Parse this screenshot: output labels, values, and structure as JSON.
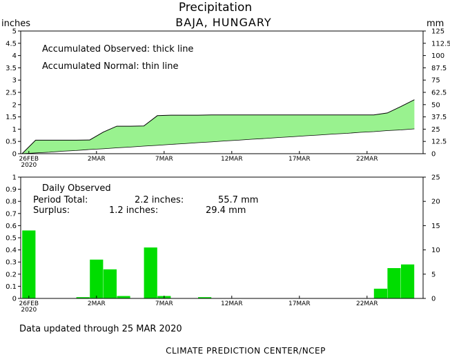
{
  "title": "Precipitation",
  "subtitle": "BAJA, HUNGARY",
  "left_unit": "inches",
  "right_unit": "mm",
  "top_panel": {
    "annotation_line1": "Accumulated Observed: thick line",
    "annotation_line2": "Accumulated Normal: thin line",
    "y_left_ticks": [
      "0",
      "0.5",
      "1",
      "1.5",
      "2",
      "2.5",
      "3",
      "3.5",
      "4",
      "4.5",
      "5"
    ],
    "y_right_ticks": [
      "0",
      "12.5",
      "25",
      "37.5",
      "50",
      "62.5",
      "75",
      "87.5",
      "100",
      "112.5",
      "125"
    ]
  },
  "bottom_panel": {
    "annotation_line1": "Daily Observed",
    "period_total_label": "Period Total:",
    "period_total_inches": "2.2 inches:",
    "period_total_mm": "55.7 mm",
    "surplus_label": "Surplus:",
    "surplus_inches": "1.2 inches:",
    "surplus_mm": "29.4 mm",
    "y_left_ticks": [
      "0",
      "0.1",
      "0.2",
      "0.3",
      "0.4",
      "0.5",
      "0.6",
      "0.7",
      "0.8",
      "0.9",
      "1"
    ],
    "y_right_ticks": [
      "0",
      "5",
      "10",
      "15",
      "20",
      "25"
    ]
  },
  "x_ticks": [
    {
      "day": 0,
      "label": "26FEB",
      "year": "2020"
    },
    {
      "day": 5,
      "label": "2MAR",
      "year": ""
    },
    {
      "day": 10,
      "label": "7MAR",
      "year": ""
    },
    {
      "day": 15,
      "label": "12MAR",
      "year": ""
    },
    {
      "day": 20,
      "label": "17MAR",
      "year": ""
    },
    {
      "day": 25,
      "label": "22MAR",
      "year": ""
    }
  ],
  "footer": "Data updated through 25 MAR 2020",
  "credit": "CLIMATE PREDICTION CENTER/NCEP",
  "colors": {
    "fill": "#99f28f",
    "bar": "#00dd00",
    "line": "#000000"
  },
  "chart_data": [
    {
      "type": "area",
      "title": "Precipitation",
      "subtitle": "BAJA, HUNGARY",
      "xlabel": "",
      "ylabel": "inches",
      "ylim": [
        0,
        5
      ],
      "ylim_right_mm": [
        0,
        125
      ],
      "x": [
        "26FEB",
        "27FEB",
        "28FEB",
        "29FEB",
        "1MAR",
        "2MAR",
        "3MAR",
        "4MAR",
        "5MAR",
        "6MAR",
        "7MAR",
        "8MAR",
        "9MAR",
        "10MAR",
        "11MAR",
        "12MAR",
        "13MAR",
        "14MAR",
        "15MAR",
        "16MAR",
        "17MAR",
        "18MAR",
        "19MAR",
        "20MAR",
        "21MAR",
        "22MAR",
        "23MAR",
        "24MAR",
        "25MAR"
      ],
      "series": [
        {
          "name": "Accumulated Observed",
          "values": [
            0.55,
            0.55,
            0.55,
            0.55,
            0.56,
            0.88,
            1.12,
            1.12,
            1.13,
            1.55,
            1.57,
            1.57,
            1.57,
            1.58,
            1.58,
            1.58,
            1.58,
            1.58,
            1.58,
            1.58,
            1.58,
            1.58,
            1.58,
            1.58,
            1.58,
            1.58,
            1.66,
            1.92,
            2.2
          ]
        },
        {
          "name": "Accumulated Normal",
          "values": [
            0.03,
            0.06,
            0.1,
            0.13,
            0.17,
            0.2,
            0.24,
            0.27,
            0.31,
            0.34,
            0.38,
            0.41,
            0.45,
            0.48,
            0.52,
            0.55,
            0.59,
            0.62,
            0.66,
            0.69,
            0.73,
            0.76,
            0.8,
            0.83,
            0.87,
            0.9,
            0.94,
            0.97,
            1.01
          ]
        }
      ]
    },
    {
      "type": "bar",
      "title": "Daily Observed",
      "xlabel": "",
      "ylabel": "inches",
      "ylim": [
        0,
        1
      ],
      "ylim_right_mm": [
        0,
        25
      ],
      "categories": [
        "26FEB",
        "27FEB",
        "28FEB",
        "29FEB",
        "1MAR",
        "2MAR",
        "3MAR",
        "4MAR",
        "5MAR",
        "6MAR",
        "7MAR",
        "8MAR",
        "9MAR",
        "10MAR",
        "11MAR",
        "12MAR",
        "13MAR",
        "14MAR",
        "15MAR",
        "16MAR",
        "17MAR",
        "18MAR",
        "19MAR",
        "20MAR",
        "21MAR",
        "22MAR",
        "23MAR",
        "24MAR",
        "25MAR"
      ],
      "values": [
        0.56,
        0,
        0,
        0,
        0.01,
        0.32,
        0.24,
        0.02,
        0,
        0.42,
        0.02,
        0,
        0,
        0.01,
        0,
        0,
        0,
        0,
        0,
        0,
        0,
        0,
        0,
        0,
        0,
        0,
        0.08,
        0.25,
        0.28
      ]
    }
  ]
}
